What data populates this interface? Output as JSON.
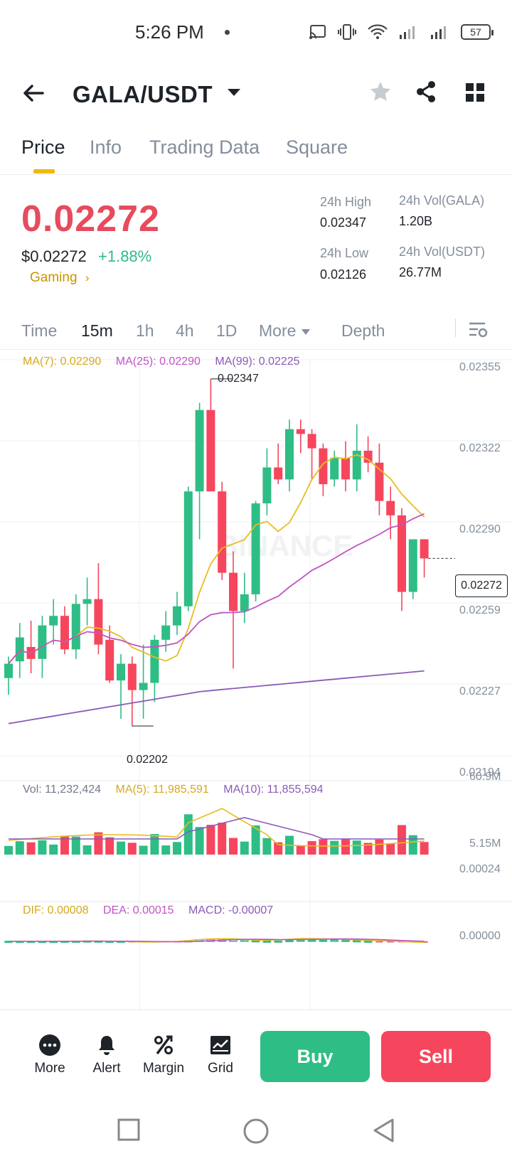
{
  "status_bar": {
    "time": "5:26 PM",
    "battery": "57"
  },
  "header": {
    "pair": "GALA/USDT"
  },
  "tabs": [
    {
      "label": "Price",
      "active": true
    },
    {
      "label": "Info",
      "active": false
    },
    {
      "label": "Trading Data",
      "active": false
    },
    {
      "label": "Square",
      "active": false
    }
  ],
  "price": {
    "last": "0.02272",
    "usd": "$0.02272",
    "change": "+1.88%",
    "category": "Gaming",
    "high_label": "24h High",
    "high": "0.02347",
    "low_label": "24h Low",
    "low": "0.02126",
    "vol_gala_label": "24h Vol(GALA)",
    "vol_gala": "1.20B",
    "vol_usdt_label": "24h Vol(USDT)",
    "vol_usdt": "26.77M"
  },
  "intervals": [
    {
      "label": "Time",
      "active": false
    },
    {
      "label": "15m",
      "active": true
    },
    {
      "label": "1h",
      "active": false
    },
    {
      "label": "4h",
      "active": false
    },
    {
      "label": "1D",
      "active": false
    },
    {
      "label": "More",
      "active": false
    },
    {
      "label": "Depth",
      "active": false
    }
  ],
  "chart_legend": {
    "ma7": "MA(7): 0.02290",
    "ma25": "MA(25): 0.02290",
    "ma99": "MA(99): 0.02225",
    "vol": "Vol: 11,232,424",
    "vol_ma5": "MA(5): 11,985,591",
    "vol_ma10": "MA(10): 11,855,594",
    "dif": "DIF: 0.00008",
    "dea": "DEA: 0.00015",
    "macd": "MACD: -0.00007",
    "max_label": "0.02347",
    "min_label": "0.02202",
    "current": "0.02272"
  },
  "colors": {
    "up": "#2ebd85",
    "down": "#f6465d",
    "ma7": "#e7bd1f",
    "ma25": "#c054c4",
    "ma99": "#8b5ab8",
    "accent": "#f0b90b"
  },
  "chart_data": {
    "type": "candlestick",
    "price_axis": [
      "0.02355",
      "0.02322",
      "0.02290",
      "0.02259",
      "0.02227",
      "0.02194"
    ],
    "volume_axis": [
      "60.9M",
      "5.15M"
    ],
    "macd_axis": [
      "0.00024",
      "0.00000"
    ],
    "ylim": [
      0.02194,
      0.02355
    ],
    "candles": [
      [
        0.02222,
        0.02231,
        0.02215,
        0.02228
      ],
      [
        0.02229,
        0.02245,
        0.02222,
        0.02239
      ],
      [
        0.02235,
        0.02246,
        0.02224,
        0.0223
      ],
      [
        0.0223,
        0.02248,
        0.02222,
        0.02244
      ],
      [
        0.02244,
        0.02255,
        0.02236,
        0.02248
      ],
      [
        0.02248,
        0.02252,
        0.02232,
        0.02234
      ],
      [
        0.02234,
        0.02257,
        0.0223,
        0.02253
      ],
      [
        0.02253,
        0.02264,
        0.02244,
        0.02255
      ],
      [
        0.02255,
        0.0227,
        0.02232,
        0.02236
      ],
      [
        0.02238,
        0.02244,
        0.0222,
        0.02221
      ],
      [
        0.02221,
        0.02232,
        0.02205,
        0.02228
      ],
      [
        0.02228,
        0.02231,
        0.02202,
        0.02217
      ],
      [
        0.02217,
        0.02236,
        0.02205,
        0.0222
      ],
      [
        0.0222,
        0.0224,
        0.02212,
        0.02238
      ],
      [
        0.02238,
        0.0225,
        0.02233,
        0.02244
      ],
      [
        0.02244,
        0.02258,
        0.0224,
        0.02252
      ],
      [
        0.02252,
        0.02302,
        0.0225,
        0.023
      ],
      [
        0.023,
        0.02337,
        0.0228,
        0.02334
      ],
      [
        0.02334,
        0.02347,
        0.023,
        0.023
      ],
      [
        0.023,
        0.02304,
        0.02263,
        0.02266
      ],
      [
        0.02266,
        0.02275,
        0.02226,
        0.0225
      ],
      [
        0.0225,
        0.02266,
        0.02245,
        0.02257
      ],
      [
        0.02257,
        0.02296,
        0.02254,
        0.02295
      ],
      [
        0.02295,
        0.02318,
        0.0229,
        0.0231
      ],
      [
        0.0231,
        0.0232,
        0.02303,
        0.02305
      ],
      [
        0.02305,
        0.0233,
        0.023,
        0.02326
      ],
      [
        0.02326,
        0.0233,
        0.02316,
        0.02324
      ],
      [
        0.02324,
        0.02326,
        0.02305,
        0.02318
      ],
      [
        0.02318,
        0.0232,
        0.02298,
        0.02303
      ],
      [
        0.02305,
        0.02317,
        0.02302,
        0.02314
      ],
      [
        0.02314,
        0.02321,
        0.023,
        0.02305
      ],
      [
        0.02305,
        0.02328,
        0.023,
        0.02317
      ],
      [
        0.02317,
        0.02323,
        0.02308,
        0.02312
      ],
      [
        0.02312,
        0.0232,
        0.0229,
        0.02296
      ],
      [
        0.02296,
        0.02302,
        0.0228,
        0.0229
      ],
      [
        0.0229,
        0.02293,
        0.0225,
        0.02258
      ],
      [
        0.02258,
        0.0228,
        0.02255,
        0.0228
      ],
      [
        0.0228,
        0.0228,
        0.02264,
        0.02272
      ]
    ]
  },
  "actions": [
    {
      "label": "More",
      "icon": "more-icon"
    },
    {
      "label": "Alert",
      "icon": "bell-icon"
    },
    {
      "label": "Margin",
      "icon": "percent-icon"
    },
    {
      "label": "Grid",
      "icon": "grid-bot-icon"
    }
  ],
  "buttons": {
    "buy": "Buy",
    "sell": "Sell"
  }
}
